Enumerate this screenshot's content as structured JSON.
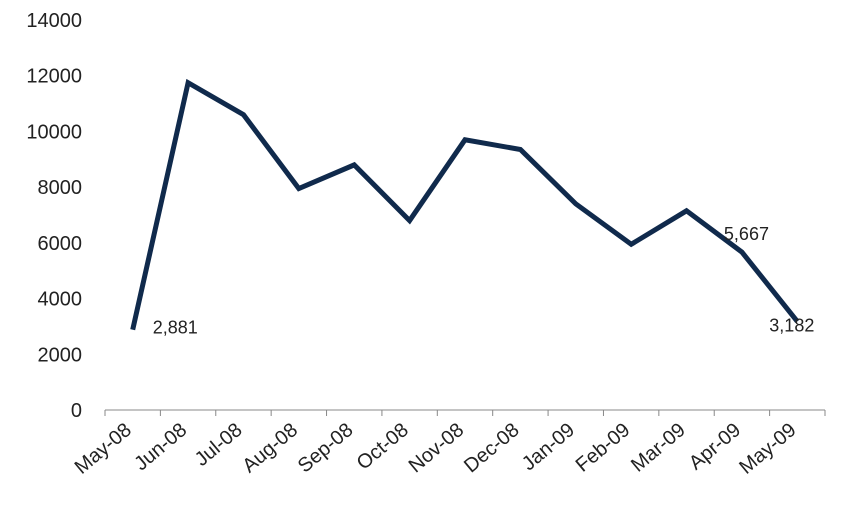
{
  "chart_data": {
    "type": "line",
    "title": "",
    "xlabel": "",
    "ylabel": "",
    "categories": [
      "May-08",
      "Jun-08",
      "Jul-08",
      "Aug-08",
      "Sep-08",
      "Oct-08",
      "Nov-08",
      "Dec-08",
      "Jan-09",
      "Feb-09",
      "Mar-09",
      "Apr-09",
      "May-09"
    ],
    "series": [
      {
        "values": [
          2881,
          11750,
          10600,
          7950,
          8800,
          6800,
          9700,
          9350,
          7400,
          5950,
          7150,
          5667,
          3182
        ],
        "color": "#102a4c"
      }
    ],
    "ylim": [
      0,
      14000
    ],
    "yticks": [
      "0",
      "2000",
      "4000",
      "6000",
      "8000",
      "10000",
      "12000",
      "14000"
    ],
    "data_labels": [
      {
        "index": 0,
        "text": "2,881"
      },
      {
        "index": 11,
        "text": "5,667"
      },
      {
        "index": 12,
        "text": "3,182"
      }
    ],
    "grid": false,
    "legend": "none"
  }
}
